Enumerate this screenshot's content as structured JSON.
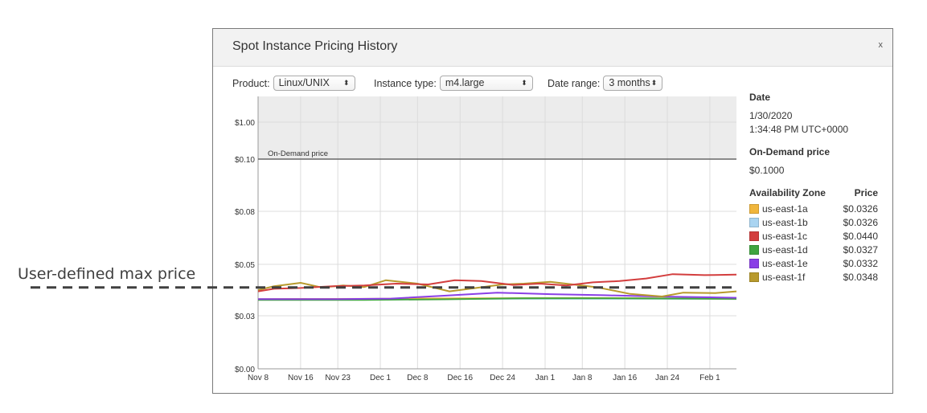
{
  "annotation": {
    "label": "User-defined max price",
    "value": 0.041
  },
  "panel": {
    "title": "Spot Instance Pricing History",
    "close_label": "x"
  },
  "controls": {
    "product_label": "Product:",
    "product_value": "Linux/UNIX",
    "instance_label": "Instance type:",
    "instance_value": "m4.large",
    "range_label": "Date range:",
    "range_value": "3 months"
  },
  "details": {
    "date_heading": "Date",
    "date_value": "1/30/2020",
    "time_value": "1:34:48 PM UTC+0000",
    "ondemand_heading": "On-Demand price",
    "ondemand_value": "$0.1000",
    "az_heading": "Availability Zone",
    "price_heading": "Price",
    "zones": [
      {
        "name": "us-east-1a",
        "price": "$0.0326",
        "color": "#f0b63c"
      },
      {
        "name": "us-east-1b",
        "price": "$0.0326",
        "color": "#a9d4f1"
      },
      {
        "name": "us-east-1c",
        "price": "$0.0440",
        "color": "#d33e3e"
      },
      {
        "name": "us-east-1d",
        "price": "$0.0327",
        "color": "#3fa53f"
      },
      {
        "name": "us-east-1e",
        "price": "$0.0332",
        "color": "#8a3fe6"
      },
      {
        "name": "us-east-1f",
        "price": "$0.0348",
        "color": "#b89a2c"
      }
    ]
  },
  "chart_data": {
    "type": "line",
    "title": "Spot Instance Pricing History",
    "xlabel": "",
    "ylabel": "",
    "ytick_labels": [
      "$1.00",
      "$0.10",
      "$0.08",
      "$0.05",
      "$0.03",
      "$0.00"
    ],
    "ytick_values": [
      1.0,
      0.1,
      0.08,
      0.05,
      0.03,
      0.0
    ],
    "xtick_labels": [
      "Nov 8",
      "Nov 16",
      "Nov 23",
      "Dec 1",
      "Dec 8",
      "Dec 16",
      "Dec 24",
      "Jan 1",
      "Jan 8",
      "Jan 16",
      "Jan 24",
      "Feb 1"
    ],
    "xtick_days": [
      0,
      8,
      15,
      23,
      30,
      38,
      46,
      54,
      61,
      69,
      77,
      85
    ],
    "x_range_days": [
      0,
      90
    ],
    "on_demand": {
      "label": "On-Demand price",
      "value": 0.1
    },
    "grid": true,
    "series": [
      {
        "name": "us-east-1a",
        "color": "#f0b63c",
        "x": [
          0,
          20,
          40,
          60,
          75,
          90
        ],
        "y": [
          0.0365,
          0.0366,
          0.0368,
          0.0369,
          0.0368,
          0.0366
        ]
      },
      {
        "name": "us-east-1b",
        "color": "#a9d4f1",
        "x": [
          0,
          20,
          40,
          60,
          75,
          90
        ],
        "y": [
          0.0365,
          0.0365,
          0.0366,
          0.0366,
          0.0366,
          0.0365
        ]
      },
      {
        "name": "us-east-1c",
        "color": "#d33e3e",
        "x": [
          0,
          3,
          8,
          14,
          20,
          26,
          32,
          37,
          42,
          48,
          53,
          58,
          63,
          68,
          73,
          78,
          84,
          90
        ],
        "y": [
          0.0395,
          0.0405,
          0.0408,
          0.0415,
          0.0418,
          0.0425,
          0.0422,
          0.0438,
          0.0435,
          0.042,
          0.0425,
          0.0418,
          0.043,
          0.0435,
          0.0445,
          0.0462,
          0.0458,
          0.046
        ]
      },
      {
        "name": "us-east-1d",
        "color": "#3fa53f",
        "x": [
          0,
          20,
          35,
          50,
          65,
          80,
          90
        ],
        "y": [
          0.0362,
          0.0362,
          0.0364,
          0.0368,
          0.0368,
          0.0367,
          0.0366
        ]
      },
      {
        "name": "us-east-1e",
        "color": "#8a3fe6",
        "x": [
          0,
          15,
          25,
          35,
          45,
          55,
          65,
          75,
          85,
          90
        ],
        "y": [
          0.0365,
          0.0365,
          0.0367,
          0.0378,
          0.039,
          0.0384,
          0.038,
          0.0375,
          0.0372,
          0.037
        ]
      },
      {
        "name": "us-east-1f",
        "color": "#b89a2c",
        "x": [
          0,
          3,
          8,
          12,
          16,
          20,
          24,
          30,
          36,
          41,
          46,
          50,
          55,
          60,
          64,
          70,
          76,
          80,
          86,
          90
        ],
        "y": [
          0.04,
          0.0415,
          0.0428,
          0.041,
          0.0418,
          0.0412,
          0.0438,
          0.0425,
          0.0395,
          0.0408,
          0.0422,
          0.0425,
          0.0432,
          0.042,
          0.041,
          0.0385,
          0.0375,
          0.039,
          0.0388,
          0.0395
        ]
      }
    ]
  }
}
